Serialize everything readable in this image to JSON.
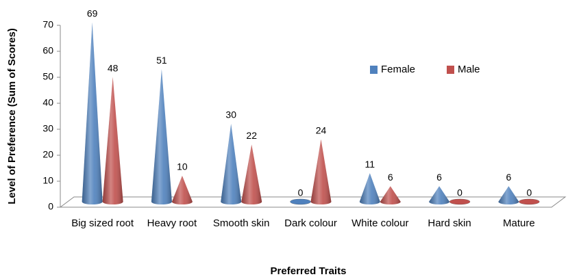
{
  "chart_data": {
    "type": "cone",
    "x_label": "Preferred Traits",
    "y_label": "Level of Preference (Sum of Scores)",
    "categories": [
      "Big sized root",
      "Heavy root",
      "Smooth skin",
      "Dark colour",
      "White colour",
      "Hard skin",
      "Mature"
    ],
    "series": [
      {
        "name": "Female",
        "color": "#4f81bd",
        "values": [
          69,
          51,
          30,
          0,
          11,
          6,
          6
        ]
      },
      {
        "name": "Male",
        "color": "#c0504d",
        "values": [
          48,
          10,
          22,
          24,
          6,
          0,
          0
        ]
      }
    ],
    "ylim": [
      0,
      70
    ],
    "yticks": [
      0,
      10,
      20,
      30,
      40,
      50,
      60,
      70
    ],
    "legend": "top-right",
    "grid": false
  }
}
